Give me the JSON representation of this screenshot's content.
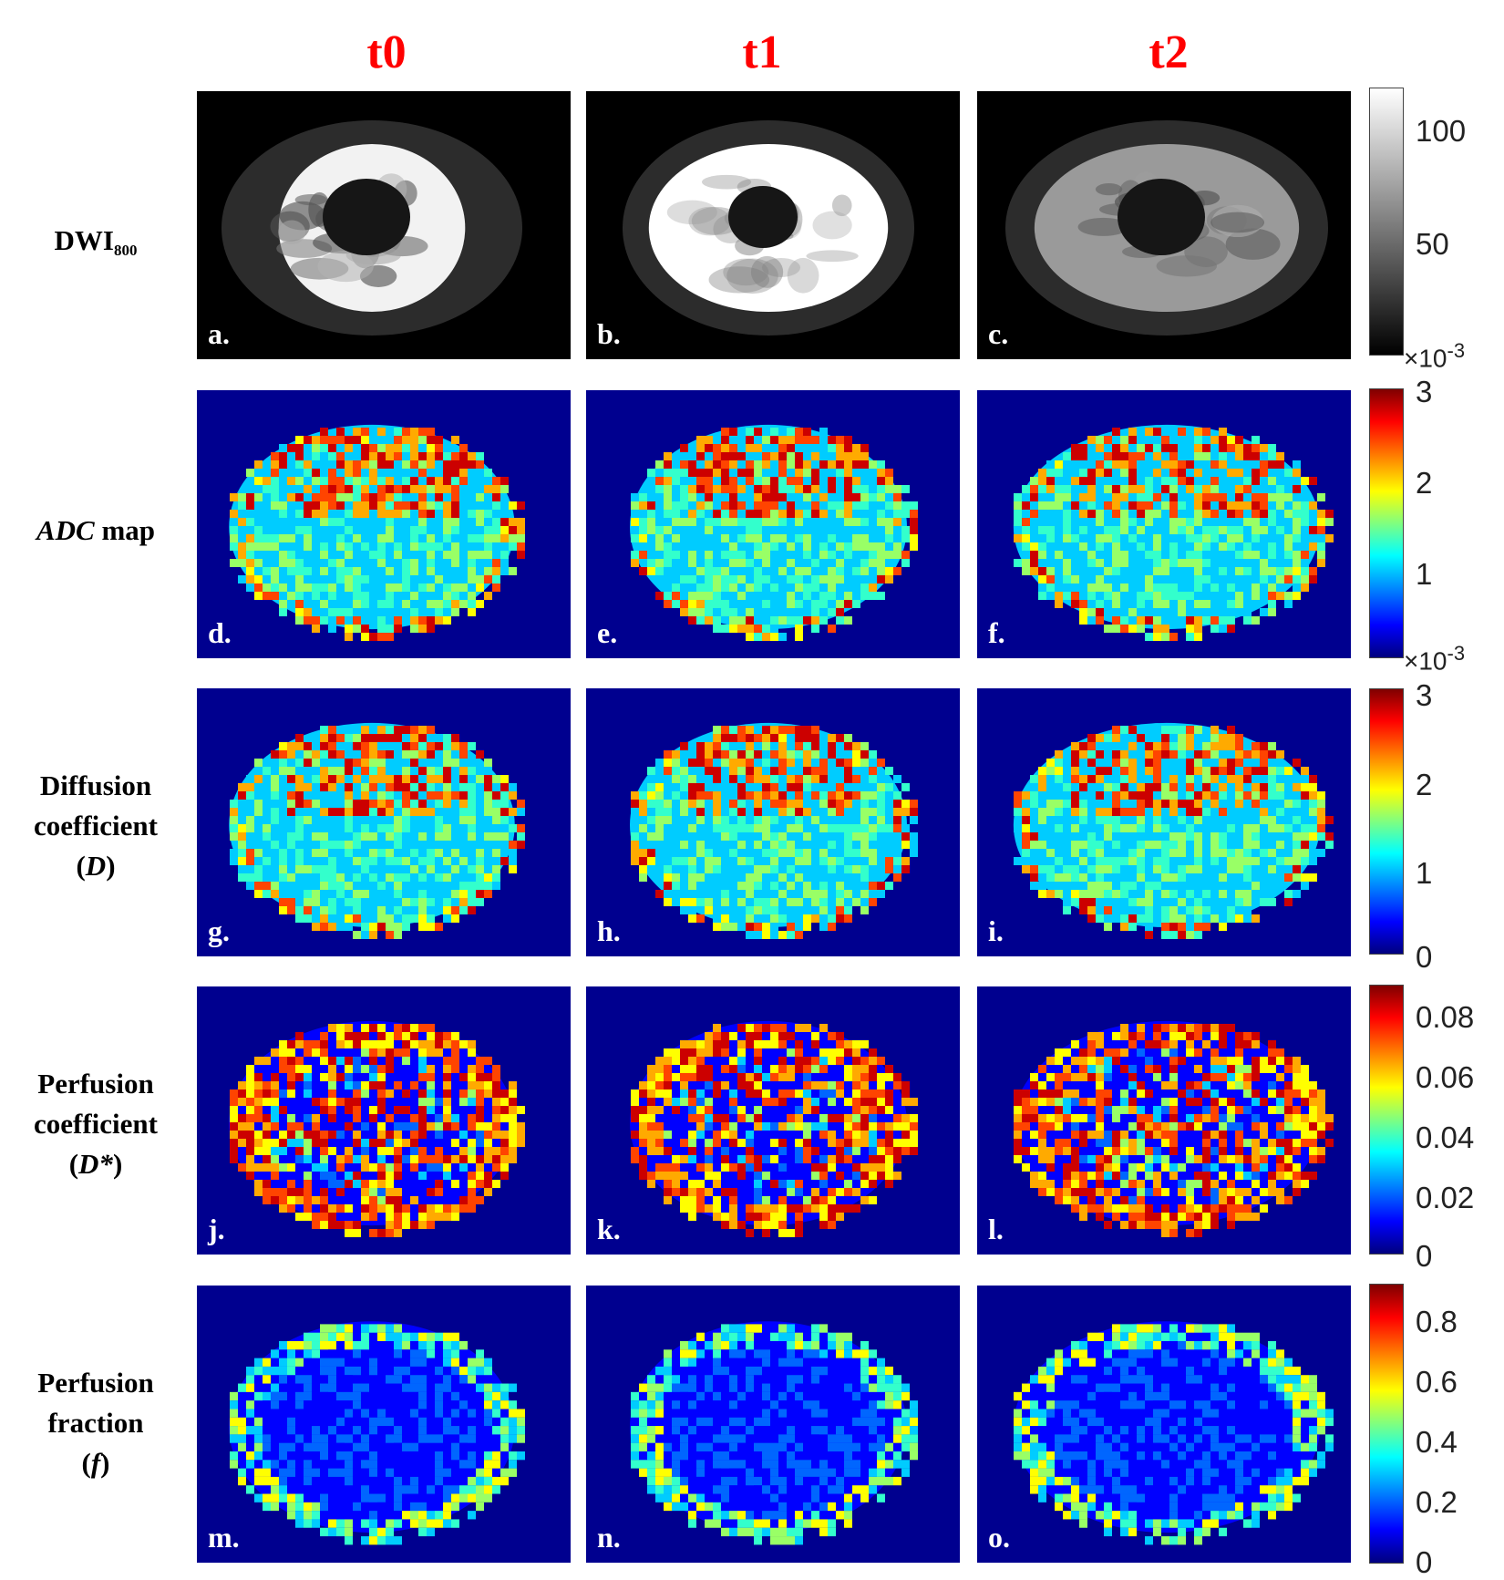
{
  "columns": [
    "t0",
    "t1",
    "t2"
  ],
  "rows": [
    {
      "label_parts": [
        "DWI",
        "800"
      ],
      "panels": [
        "a.",
        "b.",
        "c."
      ]
    },
    {
      "label_parts": [
        "ADC",
        " map"
      ],
      "panels": [
        "d.",
        "e.",
        "f."
      ]
    },
    {
      "label_parts": [
        "Diffusion",
        "coefficient",
        "(",
        "D",
        ")"
      ],
      "panels": [
        "g.",
        "h.",
        "i."
      ]
    },
    {
      "label_parts": [
        "Perfusion",
        "coefficient",
        "(",
        "D*",
        ")"
      ],
      "panels": [
        "j.",
        "k.",
        "l."
      ]
    },
    {
      "label_parts": [
        "Perfusion",
        "fraction",
        "(",
        "f",
        ")"
      ],
      "panels": [
        "m.",
        "n.",
        "o."
      ]
    }
  ],
  "colorbars": [
    {
      "type": "grayscale",
      "ticks": [
        "100",
        "50"
      ],
      "exponent": "×10",
      "exponent_power": "-3"
    },
    {
      "type": "jet",
      "ticks": [
        "3",
        "2",
        "1"
      ],
      "exponent": "×10",
      "exponent_power": "-3"
    },
    {
      "type": "jet",
      "ticks": [
        "3",
        "2",
        "1",
        "0"
      ]
    },
    {
      "type": "jet",
      "ticks": [
        "0.08",
        "0.06",
        "0.04",
        "0.02",
        "0"
      ]
    },
    {
      "type": "jet",
      "ticks": [
        "0.8",
        "0.6",
        "0.4",
        "0.2",
        "0"
      ]
    }
  ],
  "colors": {
    "header": "#ff0000",
    "map_background": "#00008f",
    "gray_background": "#000000"
  }
}
